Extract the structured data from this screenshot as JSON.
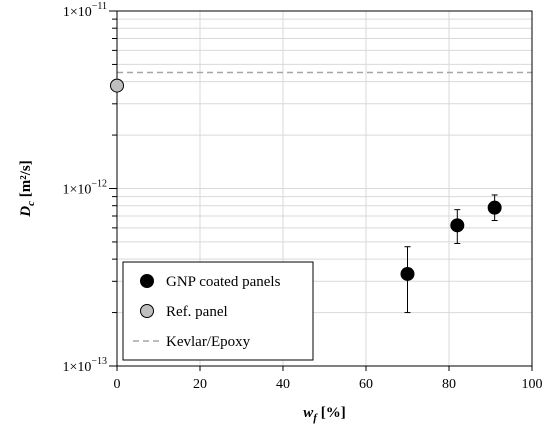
{
  "chart_data": {
    "type": "scatter",
    "title": "",
    "xlabel": {
      "var": "w",
      "sub": "f",
      "unit": " [%]"
    },
    "ylabel": {
      "var": "D",
      "sub": "c",
      "unit": " [m²/s]"
    },
    "xlim": [
      0,
      100
    ],
    "ylim": [
      1e-13,
      1e-11
    ],
    "yscale": "log",
    "grid": true,
    "legend_position": "bottom-left",
    "x_ticks": [
      "0",
      "20",
      "40",
      "60",
      "80",
      "100"
    ],
    "y_ticks": [
      {
        "value": 1e-11,
        "mantissa": "1×10",
        "exponent": "−11"
      },
      {
        "value": 1e-12,
        "mantissa": "1×10",
        "exponent": "−12"
      },
      {
        "value": 1e-13,
        "mantissa": "1×10",
        "exponent": "−13"
      }
    ],
    "series": [
      {
        "name": "GNP coated panels",
        "kind": "points",
        "color": "#000000",
        "points": [
          {
            "x": 70,
            "y": 3.3e-13,
            "y_low": 2e-13,
            "y_high": 4.7e-13
          },
          {
            "x": 82,
            "y": 6.2e-13,
            "y_low": 4.9e-13,
            "y_high": 7.6e-13
          },
          {
            "x": 91,
            "y": 7.8e-13,
            "y_low": 6.6e-13,
            "y_high": 9.2e-13
          }
        ]
      },
      {
        "name": "Ref. panel",
        "kind": "points",
        "color": "#bfbfbf",
        "points": [
          {
            "x": 0,
            "y": 3.8e-12
          }
        ]
      },
      {
        "name": "Kevlar/Epoxy",
        "kind": "hline",
        "color": "#a6a6a6",
        "y": 4.5e-12
      }
    ]
  }
}
